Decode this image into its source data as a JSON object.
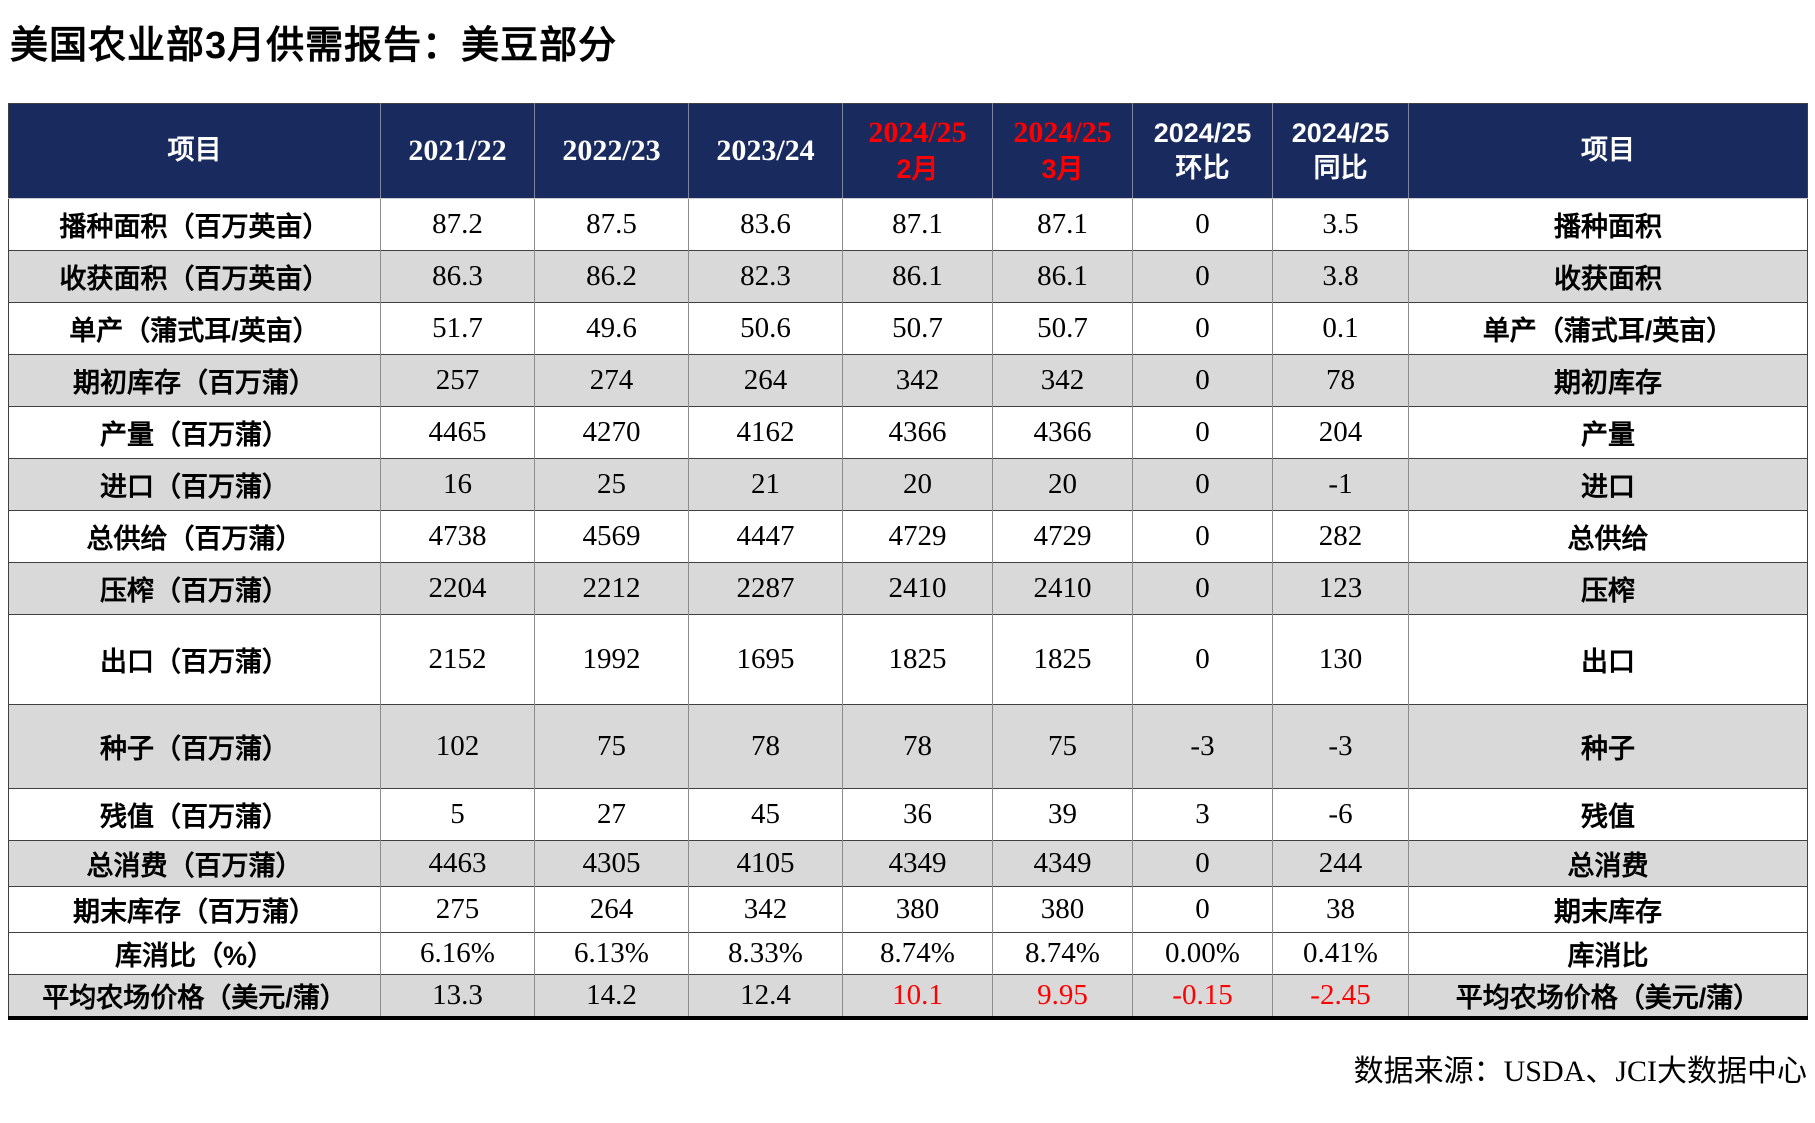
{
  "page": {
    "title": "美国农业部3月供需报告：美豆部分",
    "source": "数据来源：USDA、JCI大数据中心"
  },
  "colors": {
    "header_bg": "#192a5e",
    "header_text": "#ffffff",
    "highlight_red": "#ff0000",
    "stripe_gray": "#d9d9d9",
    "row_white": "#ffffff"
  },
  "table": {
    "columns": [
      {
        "key": "item_left",
        "line1": "项目"
      },
      {
        "key": "y2021_22",
        "line1": "2021/22",
        "numeric": true
      },
      {
        "key": "y2022_23",
        "line1": "2022/23",
        "numeric": true
      },
      {
        "key": "y2023_24",
        "line1": "2023/24",
        "numeric": true
      },
      {
        "key": "feb_2024_25",
        "line1": "2024/25",
        "line2": "2月",
        "red": true,
        "numeric": true
      },
      {
        "key": "mar_2024_25",
        "line1": "2024/25",
        "line2": "3月",
        "red": true,
        "numeric": true
      },
      {
        "key": "mom_2024_25",
        "line1": "2024/25",
        "line2": "环比"
      },
      {
        "key": "yoy_2024_25",
        "line1": "2024/25",
        "line2": "同比"
      },
      {
        "key": "item_right",
        "line1": "项目"
      }
    ],
    "rows": [
      {
        "left": "播种面积（百万英亩）",
        "values": [
          "87.2",
          "87.5",
          "83.6",
          "87.1",
          "87.1",
          "0",
          "3.5"
        ],
        "right": "播种面积"
      },
      {
        "left": "收获面积（百万英亩）",
        "values": [
          "86.3",
          "86.2",
          "82.3",
          "86.1",
          "86.1",
          "0",
          "3.8"
        ],
        "right": "收获面积"
      },
      {
        "left": "单产（蒲式耳/英亩）",
        "values": [
          "51.7",
          "49.6",
          "50.6",
          "50.7",
          "50.7",
          "0",
          "0.1"
        ],
        "right": "单产（蒲式耳/英亩）"
      },
      {
        "left": "期初库存（百万蒲）",
        "values": [
          "257",
          "274",
          "264",
          "342",
          "342",
          "0",
          "78"
        ],
        "right": "期初库存"
      },
      {
        "left": "产量（百万蒲）",
        "values": [
          "4465",
          "4270",
          "4162",
          "4366",
          "4366",
          "0",
          "204"
        ],
        "right": "产量"
      },
      {
        "left": "进口（百万蒲）",
        "values": [
          "16",
          "25",
          "21",
          "20",
          "20",
          "0",
          "-1"
        ],
        "right": "进口"
      },
      {
        "left": "总供给（百万蒲）",
        "values": [
          "4738",
          "4569",
          "4447",
          "4729",
          "4729",
          "0",
          "282"
        ],
        "right": "总供给"
      },
      {
        "left": "压榨（百万蒲）",
        "values": [
          "2204",
          "2212",
          "2287",
          "2410",
          "2410",
          "0",
          "123"
        ],
        "right": "压榨"
      },
      {
        "left": "出口（百万蒲）",
        "values": [
          "2152",
          "1992",
          "1695",
          "1825",
          "1825",
          "0",
          "130"
        ],
        "right": "出口"
      },
      {
        "left": "种子（百万蒲）",
        "values": [
          "102",
          "75",
          "78",
          "78",
          "75",
          "-3",
          "-3"
        ],
        "right": "种子"
      },
      {
        "left": "残值（百万蒲）",
        "values": [
          "5",
          "27",
          "45",
          "36",
          "39",
          "3",
          "-6"
        ],
        "right": "残值"
      },
      {
        "left": "总消费（百万蒲）",
        "values": [
          "4463",
          "4305",
          "4105",
          "4349",
          "4349",
          "0",
          "244"
        ],
        "right": "总消费"
      },
      {
        "left": "期末库存（百万蒲）",
        "values": [
          "275",
          "264",
          "342",
          "380",
          "380",
          "0",
          "38"
        ],
        "right": "期末库存"
      },
      {
        "left": "库消比（%）",
        "values": [
          "6.16%",
          "6.13%",
          "8.33%",
          "8.74%",
          "8.74%",
          "0.00%",
          "0.41%"
        ],
        "right": "库消比"
      },
      {
        "left": "平均农场价格（美元/蒲）",
        "values": [
          "13.3",
          "14.2",
          "12.4",
          "10.1",
          "9.95",
          "-0.15",
          "-2.45"
        ],
        "right": "平均农场价格（美元/蒲）",
        "red_value_indexes": [
          3,
          4,
          5,
          6
        ]
      }
    ],
    "gray_row_indexes": [
      1,
      3,
      5,
      7,
      9,
      11,
      14
    ]
  }
}
